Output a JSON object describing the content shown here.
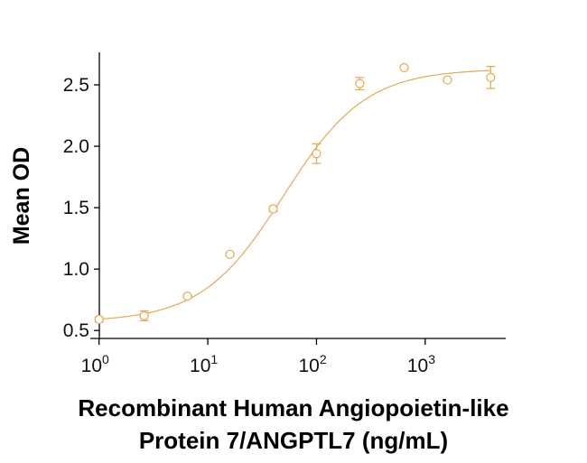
{
  "chart_data": {
    "type": "scatter",
    "xlabel_lines": [
      "Recombinant Human Angiopoietin-like",
      "Protein 7/ANGPTL7 (ng/mL)"
    ],
    "ylabel": "Mean OD",
    "x_scale": "log",
    "xlim": [
      0.8,
      5000
    ],
    "ylim": [
      0.45,
      2.75
    ],
    "x_ticks": [
      {
        "value": 1,
        "base": "10",
        "exp": "0"
      },
      {
        "value": 10,
        "base": "10",
        "exp": "1"
      },
      {
        "value": 100,
        "base": "10",
        "exp": "2"
      },
      {
        "value": 1000,
        "base": "10",
        "exp": "3"
      }
    ],
    "y_ticks": [
      {
        "value": 0.5,
        "label": "0.5"
      },
      {
        "value": 1.0,
        "label": "1.0"
      },
      {
        "value": 1.5,
        "label": "1.5"
      },
      {
        "value": 2.0,
        "label": "2.0"
      },
      {
        "value": 2.5,
        "label": "2.5"
      }
    ],
    "series": [
      {
        "color": "#e8a84e",
        "points": [
          {
            "x": 1.0,
            "y": 0.59,
            "err": 0.02
          },
          {
            "x": 2.6,
            "y": 0.62,
            "err": 0.04
          },
          {
            "x": 6.5,
            "y": 0.78,
            "err": 0.01
          },
          {
            "x": 16,
            "y": 1.12,
            "err": 0.01
          },
          {
            "x": 40,
            "y": 1.49,
            "err": 0.02
          },
          {
            "x": 100,
            "y": 1.94,
            "err": 0.08
          },
          {
            "x": 250,
            "y": 2.51,
            "err": 0.05
          },
          {
            "x": 640,
            "y": 2.64,
            "err": 0.0
          },
          {
            "x": 1600,
            "y": 2.54,
            "err": 0.01
          },
          {
            "x": 4000,
            "y": 2.56,
            "err": 0.09
          }
        ],
        "fit": {
          "model": "4PL",
          "bottom": 0.57,
          "top": 2.63,
          "ec50": 50,
          "hill": 1.15
        }
      }
    ],
    "grid": false,
    "legend": "none"
  }
}
